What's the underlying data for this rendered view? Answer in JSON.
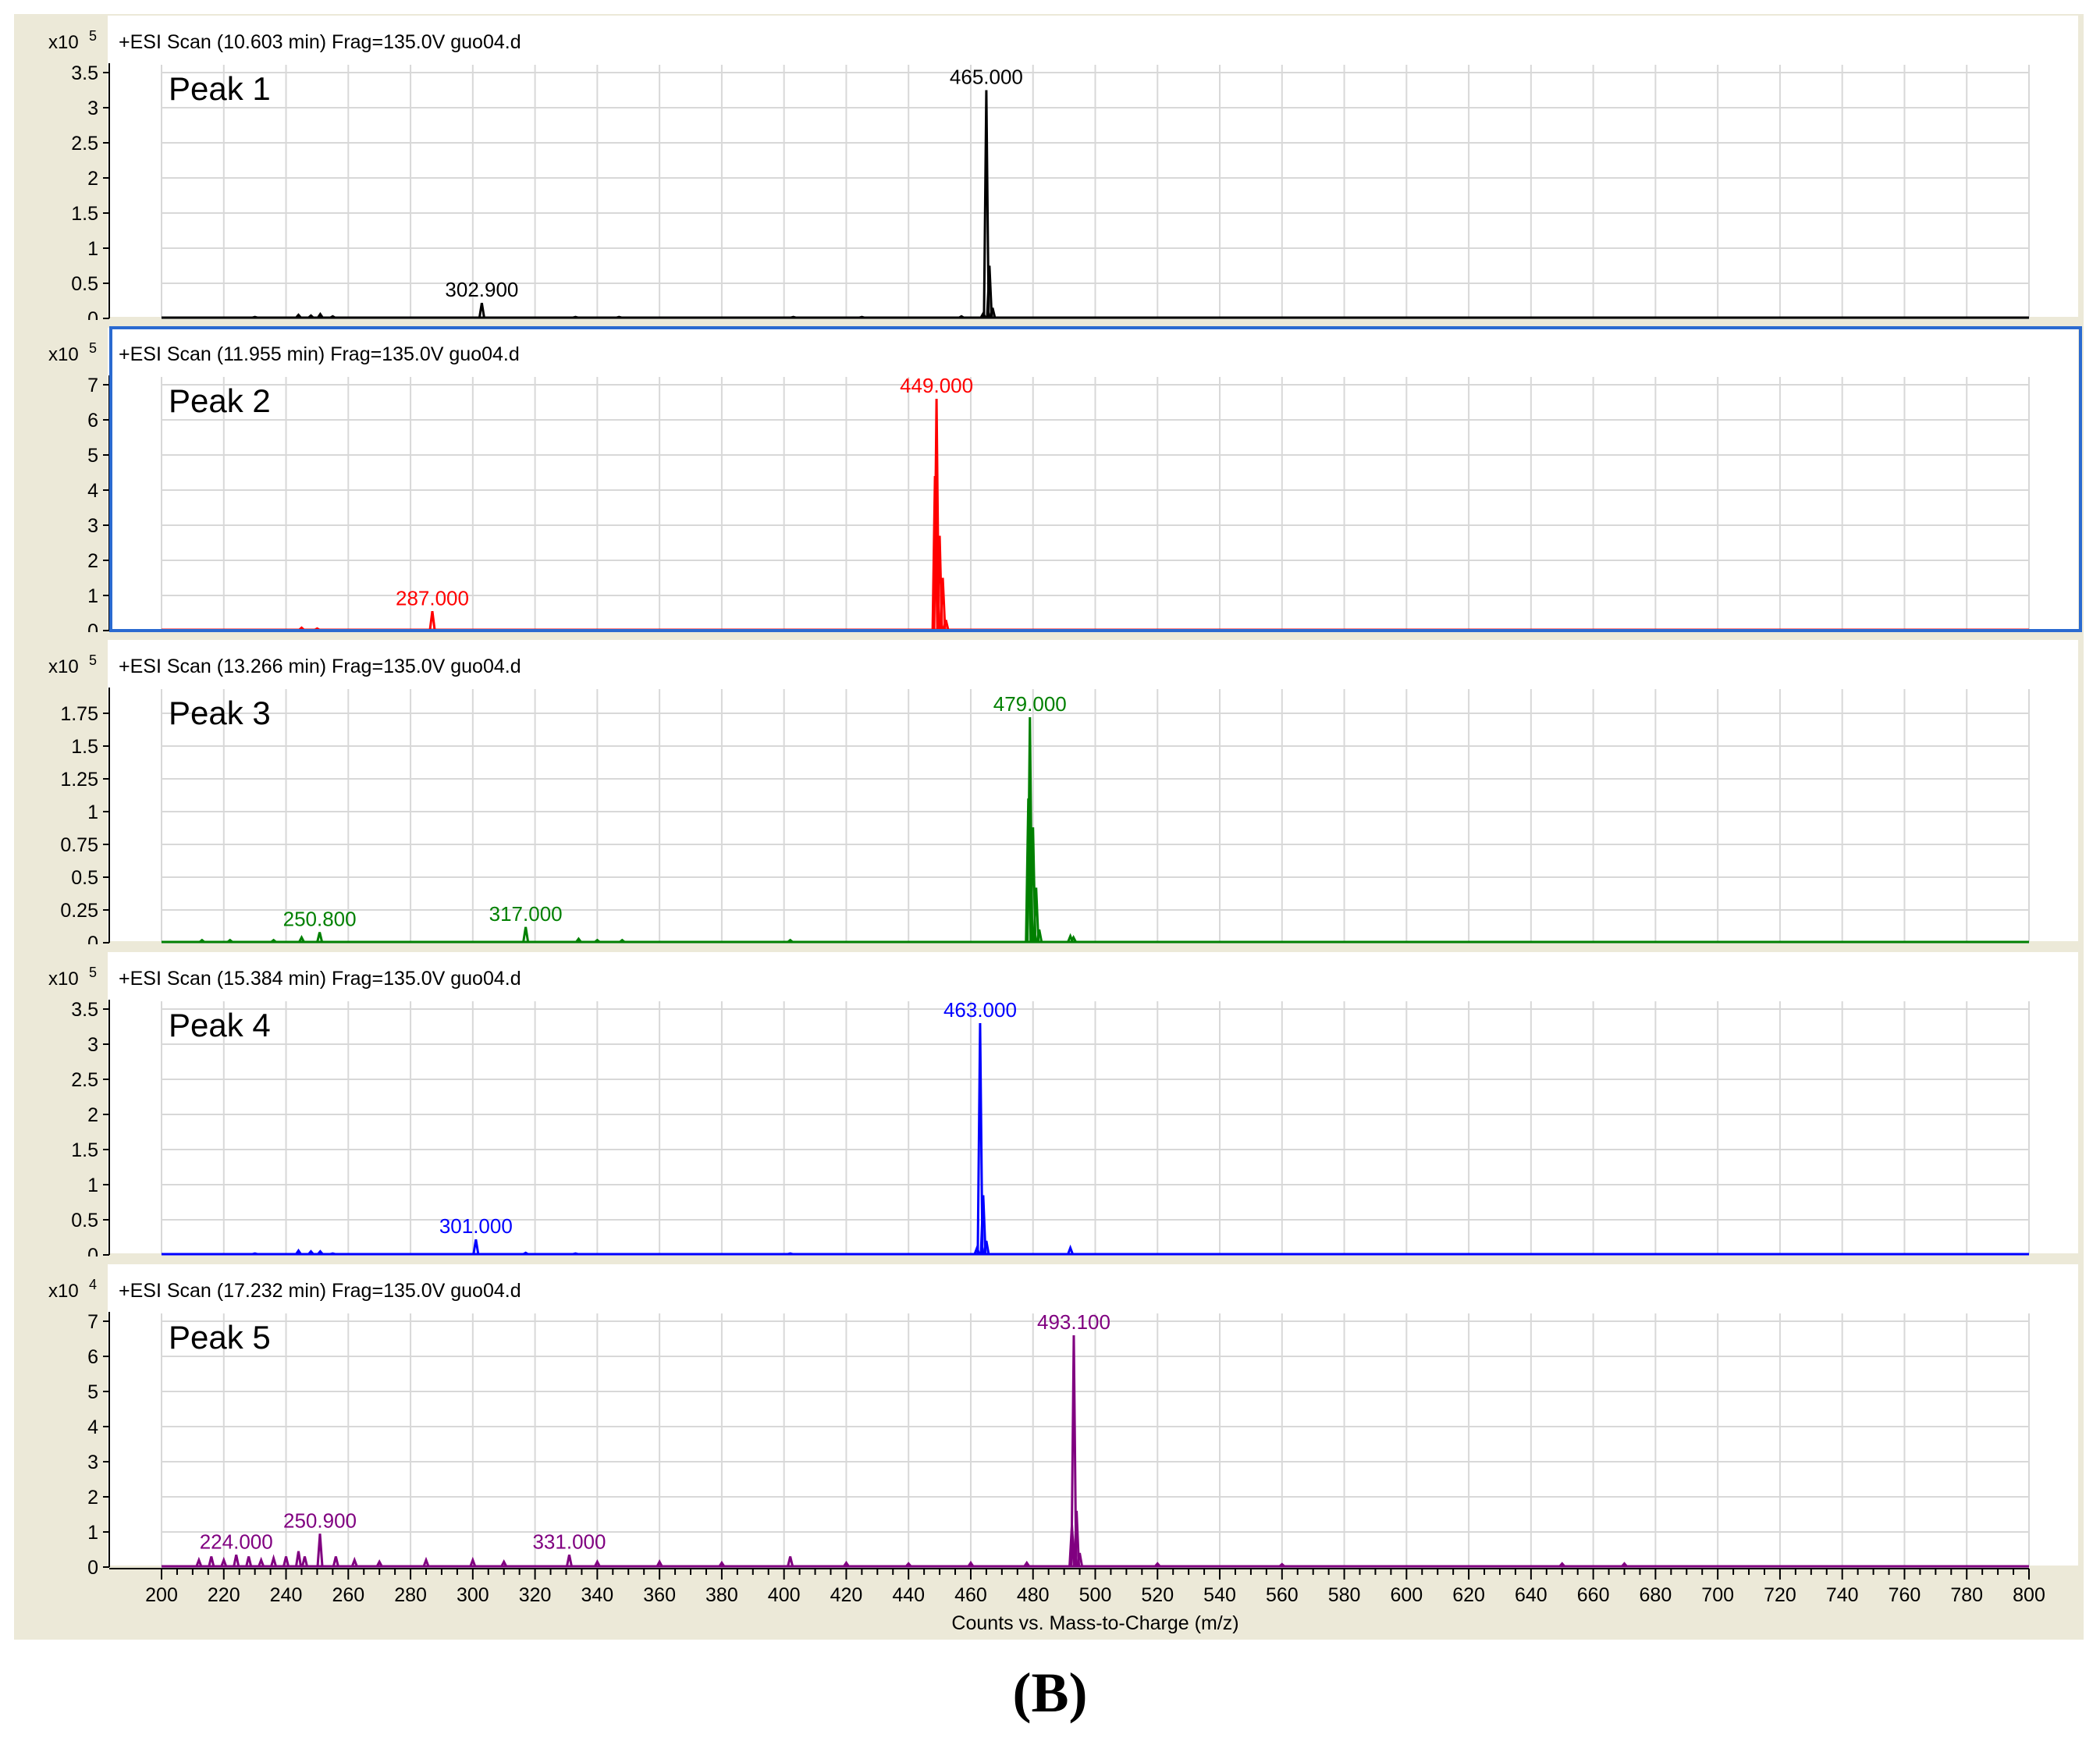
{
  "figure_label": "(B)",
  "chart_data": [
    {
      "type": "line",
      "title": "+ESI Scan (10.603 min) Frag=135.0V guo04.d",
      "peak_name": "Peak 1",
      "scale_label": "x10",
      "scale_exp": "5",
      "color": "#000000",
      "selected": false,
      "ylim": [
        0,
        3.5
      ],
      "yticks": [
        0,
        0.5,
        1,
        1.5,
        2,
        2.5,
        3,
        3.5
      ],
      "ytick_labels": [
        "0",
        "0.5",
        "1",
        "1.5",
        "2",
        "2.5",
        "3",
        "3.5"
      ],
      "xlim": [
        200,
        800
      ],
      "peaks": [
        {
          "x": 230,
          "y": 0.02
        },
        {
          "x": 244,
          "y": 0.05
        },
        {
          "x": 248,
          "y": 0.04
        },
        {
          "x": 251,
          "y": 0.06
        },
        {
          "x": 255,
          "y": 0.03
        },
        {
          "x": 302.9,
          "y": 0.22
        },
        {
          "x": 333,
          "y": 0.02
        },
        {
          "x": 347,
          "y": 0.02
        },
        {
          "x": 403,
          "y": 0.02
        },
        {
          "x": 425,
          "y": 0.02
        },
        {
          "x": 457,
          "y": 0.03
        },
        {
          "x": 464,
          "y": 0.07
        },
        {
          "x": 465,
          "y": 3.25
        },
        {
          "x": 466,
          "y": 0.75
        },
        {
          "x": 467,
          "y": 0.15
        }
      ],
      "labels": [
        {
          "x": 465,
          "y": 3.25,
          "text": "465.000"
        },
        {
          "x": 302.9,
          "y": 0.22,
          "text": "302.900"
        }
      ]
    },
    {
      "type": "line",
      "title": "+ESI Scan (11.955 min) Frag=135.0V guo04.d",
      "peak_name": "Peak 2",
      "scale_label": "x10",
      "scale_exp": "5",
      "color": "#ff0000",
      "selected": true,
      "ylim": [
        0,
        7
      ],
      "yticks": [
        0,
        1,
        2,
        3,
        4,
        5,
        6,
        7
      ],
      "ytick_labels": [
        "0",
        "1",
        "2",
        "3",
        "4",
        "5",
        "6",
        "7"
      ],
      "xlim": [
        200,
        800
      ],
      "peaks": [
        {
          "x": 245,
          "y": 0.08
        },
        {
          "x": 250,
          "y": 0.06
        },
        {
          "x": 287,
          "y": 0.55
        },
        {
          "x": 448.5,
          "y": 4.4
        },
        {
          "x": 449,
          "y": 6.6
        },
        {
          "x": 450,
          "y": 2.7
        },
        {
          "x": 451,
          "y": 1.5
        },
        {
          "x": 452,
          "y": 0.3
        }
      ],
      "labels": [
        {
          "x": 449,
          "y": 6.6,
          "text": "449.000"
        },
        {
          "x": 287,
          "y": 0.55,
          "text": "287.000"
        }
      ]
    },
    {
      "type": "line",
      "title": "+ESI Scan (13.266 min) Frag=135.0V guo04.d",
      "peak_name": "Peak 3",
      "scale_label": "x10",
      "scale_exp": "5",
      "color": "#008000",
      "selected": false,
      "ylim": [
        0,
        1.875
      ],
      "yticks": [
        0,
        0.25,
        0.5,
        0.75,
        1,
        1.25,
        1.5,
        1.75
      ],
      "ytick_labels": [
        "0",
        "0.25",
        "0.5",
        "0.75",
        "1",
        "1.25",
        "1.5",
        "1.75"
      ],
      "xlim": [
        200,
        800
      ],
      "peaks": [
        {
          "x": 213,
          "y": 0.02
        },
        {
          "x": 222,
          "y": 0.02
        },
        {
          "x": 236,
          "y": 0.02
        },
        {
          "x": 245,
          "y": 0.04
        },
        {
          "x": 250.8,
          "y": 0.08
        },
        {
          "x": 317,
          "y": 0.12
        },
        {
          "x": 334,
          "y": 0.03
        },
        {
          "x": 340,
          "y": 0.02
        },
        {
          "x": 348,
          "y": 0.02
        },
        {
          "x": 402,
          "y": 0.02
        },
        {
          "x": 478.5,
          "y": 1.1
        },
        {
          "x": 479,
          "y": 1.72
        },
        {
          "x": 480,
          "y": 0.88
        },
        {
          "x": 481,
          "y": 0.42
        },
        {
          "x": 482,
          "y": 0.1
        },
        {
          "x": 492,
          "y": 0.05
        },
        {
          "x": 493,
          "y": 0.04
        }
      ],
      "labels": [
        {
          "x": 479,
          "y": 1.72,
          "text": "479.000"
        },
        {
          "x": 250.8,
          "y": 0.08,
          "text": "250.800"
        },
        {
          "x": 317,
          "y": 0.12,
          "text": "317.000"
        }
      ]
    },
    {
      "type": "line",
      "title": "+ESI Scan (15.384 min) Frag=135.0V guo04.d",
      "peak_name": "Peak 4",
      "scale_label": "x10",
      "scale_exp": "5",
      "color": "#0000ff",
      "selected": false,
      "ylim": [
        0,
        3.5
      ],
      "yticks": [
        0,
        0.5,
        1,
        1.5,
        2,
        2.5,
        3,
        3.5
      ],
      "ytick_labels": [
        "0",
        "0.5",
        "1",
        "1.5",
        "2",
        "2.5",
        "3",
        "3.5"
      ],
      "xlim": [
        200,
        800
      ],
      "peaks": [
        {
          "x": 230,
          "y": 0.02
        },
        {
          "x": 244,
          "y": 0.06
        },
        {
          "x": 248,
          "y": 0.05
        },
        {
          "x": 251,
          "y": 0.05
        },
        {
          "x": 255,
          "y": 0.02
        },
        {
          "x": 301,
          "y": 0.22
        },
        {
          "x": 317,
          "y": 0.03
        },
        {
          "x": 333,
          "y": 0.02
        },
        {
          "x": 402,
          "y": 0.02
        },
        {
          "x": 462,
          "y": 0.1
        },
        {
          "x": 463,
          "y": 3.3
        },
        {
          "x": 464,
          "y": 0.85
        },
        {
          "x": 465,
          "y": 0.2
        },
        {
          "x": 492,
          "y": 0.1
        }
      ],
      "labels": [
        {
          "x": 463,
          "y": 3.3,
          "text": "463.000"
        },
        {
          "x": 301,
          "y": 0.22,
          "text": "301.000"
        }
      ]
    },
    {
      "type": "line",
      "title": "+ESI Scan (17.232 min) Frag=135.0V guo04.d",
      "peak_name": "Peak 5",
      "scale_label": "x10",
      "scale_exp": "4",
      "color": "#800080",
      "selected": false,
      "ylim": [
        0,
        7
      ],
      "yticks": [
        0,
        1,
        2,
        3,
        4,
        5,
        6,
        7
      ],
      "ytick_labels": [
        "0",
        "1",
        "2",
        "3",
        "4",
        "5",
        "6",
        "7"
      ],
      "xlim": [
        200,
        800
      ],
      "xlabel": "Counts vs. Mass-to-Charge (m/z)",
      "xticks": [
        200,
        220,
        240,
        260,
        280,
        300,
        320,
        340,
        360,
        380,
        400,
        420,
        440,
        460,
        480,
        500,
        520,
        540,
        560,
        580,
        600,
        620,
        640,
        660,
        680,
        700,
        720,
        740,
        760,
        780,
        800
      ],
      "xtick_labels": [
        "200",
        "220",
        "240",
        "260",
        "280",
        "300",
        "320",
        "340",
        "360",
        "380",
        "400",
        "420",
        "440",
        "460",
        "480",
        "500",
        "520",
        "540",
        "560",
        "580",
        "600",
        "620",
        "640",
        "660",
        "680",
        "700",
        "720",
        "740",
        "760",
        "780",
        "800"
      ],
      "peaks": [
        {
          "x": 212,
          "y": 0.2
        },
        {
          "x": 216,
          "y": 0.3
        },
        {
          "x": 220,
          "y": 0.2
        },
        {
          "x": 224,
          "y": 0.35
        },
        {
          "x": 228,
          "y": 0.3
        },
        {
          "x": 232,
          "y": 0.2
        },
        {
          "x": 236,
          "y": 0.25
        },
        {
          "x": 240,
          "y": 0.3
        },
        {
          "x": 244,
          "y": 0.45
        },
        {
          "x": 246,
          "y": 0.3
        },
        {
          "x": 250.9,
          "y": 0.95
        },
        {
          "x": 256,
          "y": 0.3
        },
        {
          "x": 262,
          "y": 0.2
        },
        {
          "x": 270,
          "y": 0.15
        },
        {
          "x": 285,
          "y": 0.2
        },
        {
          "x": 300,
          "y": 0.2
        },
        {
          "x": 310,
          "y": 0.15
        },
        {
          "x": 331,
          "y": 0.35
        },
        {
          "x": 340,
          "y": 0.15
        },
        {
          "x": 360,
          "y": 0.15
        },
        {
          "x": 380,
          "y": 0.12
        },
        {
          "x": 402,
          "y": 0.3
        },
        {
          "x": 420,
          "y": 0.12
        },
        {
          "x": 440,
          "y": 0.1
        },
        {
          "x": 460,
          "y": 0.12
        },
        {
          "x": 478,
          "y": 0.12
        },
        {
          "x": 492.5,
          "y": 1.2
        },
        {
          "x": 493.1,
          "y": 6.6
        },
        {
          "x": 494,
          "y": 1.6
        },
        {
          "x": 495,
          "y": 0.4
        },
        {
          "x": 520,
          "y": 0.1
        },
        {
          "x": 560,
          "y": 0.08
        },
        {
          "x": 650,
          "y": 0.1
        },
        {
          "x": 670,
          "y": 0.1
        }
      ],
      "labels": [
        {
          "x": 493.1,
          "y": 6.6,
          "text": "493.100"
        },
        {
          "x": 224,
          "y": 0.35,
          "text": "224.000"
        },
        {
          "x": 250.9,
          "y": 0.95,
          "text": "250.900"
        },
        {
          "x": 331,
          "y": 0.35,
          "text": "331.000"
        }
      ]
    }
  ]
}
